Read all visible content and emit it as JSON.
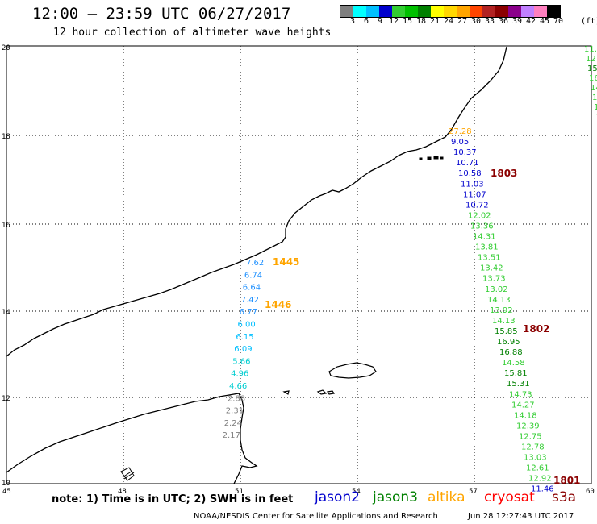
{
  "header": {
    "title": "12:00 – 23:59 UTC 06/27/2017",
    "subtitle": "12 hour collection of altimeter wave heights"
  },
  "legend": {
    "units": "(ft)",
    "labels": [
      "3",
      "6",
      "9",
      "12",
      "15",
      "18",
      "21",
      "24",
      "27",
      "30",
      "33",
      "36",
      "39",
      "42",
      "45",
      "70"
    ],
    "colors": [
      "#7f7f7f",
      "#00ffff",
      "#00bfff",
      "#0000cd",
      "#32cd32",
      "#00c000",
      "#008000",
      "#ffff00",
      "#ffd700",
      "#ffa500",
      "#ff4500",
      "#b22222",
      "#8b0000",
      "#8b008b",
      "#c080ff",
      "#ff80c0",
      "#000000"
    ]
  },
  "map": {
    "lon_ticks": [
      "45",
      "48",
      "51",
      "54",
      "57",
      "60"
    ],
    "lat_ticks": [
      "20",
      "18",
      "16",
      "14",
      "12",
      "10"
    ]
  },
  "tracks": {
    "jason2_west": [
      {
        "v": "7.62",
        "c": "#1e90ff"
      },
      {
        "v": "6.74",
        "c": "#1e90ff"
      },
      {
        "v": "6.64",
        "c": "#1e90ff"
      },
      {
        "v": "7.42",
        "c": "#1e90ff"
      },
      {
        "v": "6.77",
        "c": "#1e90ff"
      },
      {
        "v": "6.00",
        "c": "#00bfff"
      },
      {
        "v": "6.15",
        "c": "#00bfff"
      },
      {
        "v": "6.09",
        "c": "#00bfff"
      },
      {
        "v": "5.66",
        "c": "#00ced1"
      },
      {
        "v": "4.96",
        "c": "#00ced1"
      },
      {
        "v": "4.66",
        "c": "#00ced1"
      },
      {
        "v": "2.88",
        "c": "#7f7f7f"
      },
      {
        "v": "2.31",
        "c": "#7f7f7f"
      },
      {
        "v": "2.24",
        "c": "#7f7f7f"
      },
      {
        "v": "2.17",
        "c": "#7f7f7f"
      }
    ],
    "east": [
      {
        "v": "27.28",
        "c": "#ffa500"
      },
      {
        "v": "9.05",
        "c": "#0000cd"
      },
      {
        "v": "10.37",
        "c": "#0000cd"
      },
      {
        "v": "10.71",
        "c": "#0000cd"
      },
      {
        "v": "10.58",
        "c": "#0000cd"
      },
      {
        "v": "11.03",
        "c": "#0000cd"
      },
      {
        "v": "11.07",
        "c": "#0000cd"
      },
      {
        "v": "10.72",
        "c": "#0000cd"
      },
      {
        "v": "12.02",
        "c": "#32cd32"
      },
      {
        "v": "13.36",
        "c": "#32cd32"
      },
      {
        "v": "14.31",
        "c": "#32cd32"
      },
      {
        "v": "13.81",
        "c": "#32cd32"
      },
      {
        "v": "13.51",
        "c": "#32cd32"
      },
      {
        "v": "13.42",
        "c": "#32cd32"
      },
      {
        "v": "13.73",
        "c": "#32cd32"
      },
      {
        "v": "13.02",
        "c": "#32cd32"
      },
      {
        "v": "14.13",
        "c": "#32cd32"
      },
      {
        "v": "13.92",
        "c": "#32cd32"
      },
      {
        "v": "14.13",
        "c": "#32cd32"
      },
      {
        "v": "15.85",
        "c": "#008000"
      },
      {
        "v": "16.95",
        "c": "#008000"
      },
      {
        "v": "16.88",
        "c": "#008000"
      },
      {
        "v": "14.58",
        "c": "#32cd32"
      },
      {
        "v": "15.81",
        "c": "#008000"
      },
      {
        "v": "15.31",
        "c": "#008000"
      },
      {
        "v": "14.73",
        "c": "#32cd32"
      },
      {
        "v": "14.27",
        "c": "#32cd32"
      },
      {
        "v": "14.18",
        "c": "#32cd32"
      },
      {
        "v": "12.39",
        "c": "#32cd32"
      },
      {
        "v": "12.75",
        "c": "#32cd32"
      },
      {
        "v": "12.78",
        "c": "#32cd32"
      },
      {
        "v": "13.03",
        "c": "#32cd32"
      },
      {
        "v": "12.61",
        "c": "#32cd32"
      },
      {
        "v": "12.92",
        "c": "#32cd32"
      },
      {
        "v": "11.46",
        "c": "#0000cd"
      }
    ],
    "far_east": [
      {
        "v": "11.",
        "c": "#32cd32"
      },
      {
        "v": "12",
        "c": "#32cd32"
      },
      {
        "v": "15",
        "c": "#008000"
      },
      {
        "v": "16",
        "c": "#32cd32"
      },
      {
        "v": "14",
        "c": "#32cd32"
      },
      {
        "v": "15",
        "c": "#32cd32"
      },
      {
        "v": "16",
        "c": "#32cd32"
      },
      {
        "v": "15",
        "c": "#32cd32"
      },
      {
        "v": "1",
        "c": "#32cd32"
      }
    ]
  },
  "times": [
    {
      "t": "1445",
      "c": "#ffa500"
    },
    {
      "t": "1446",
      "c": "#ffa500"
    },
    {
      "t": "1803",
      "c": "#8b0000"
    },
    {
      "t": "1802",
      "c": "#8b0000"
    },
    {
      "t": "1801",
      "c": "#8b0000"
    }
  ],
  "footer": {
    "note": "note: 1) Time is in UTC; 2) SWH is in feet",
    "sat_jason2": "jason2",
    "sat_jason3": "jason3",
    "sat_altika": "altika",
    "sat_cryosat": "cryosat",
    "sat_s3a": "s3a",
    "credit": "NOAA/NESDIS Center for Satellite Applications and Research",
    "stamp": "Jun 28 12:27:43 UTC 2017"
  }
}
